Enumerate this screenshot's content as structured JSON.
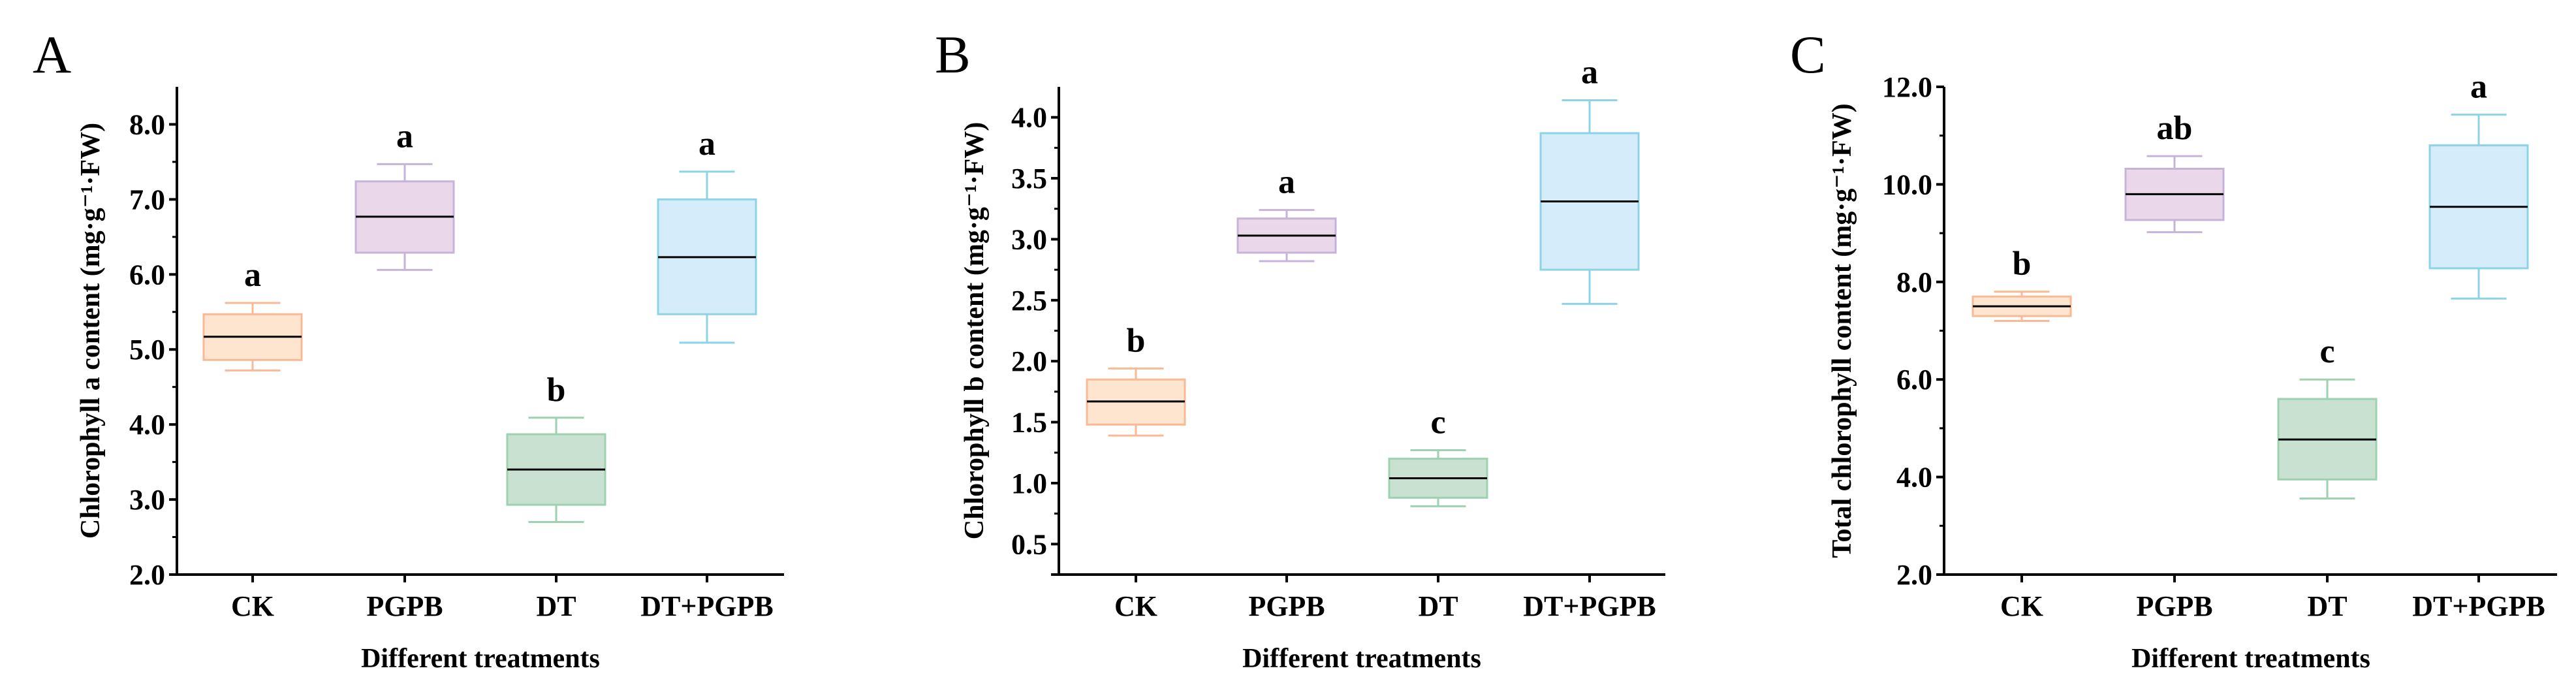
{
  "chart_data": [
    {
      "type": "box",
      "panel": "A",
      "xlabel": "Different treatments",
      "ylabel": "Chlorophyll a content (mg·g⁻¹·FW)",
      "categories": [
        "CK",
        "PGPB",
        "DT",
        "DT+PGPB"
      ],
      "ylim": [
        2.0,
        8.5
      ],
      "yticks": [
        2.0,
        3.0,
        4.0,
        5.0,
        6.0,
        7.0,
        8.0
      ],
      "ytick_labels": [
        "2.0",
        "3.0",
        "4.0",
        "5.0",
        "6.0",
        "7.0",
        "8.0"
      ],
      "boxes": [
        {
          "min": 4.72,
          "q1": 4.86,
          "median": 5.17,
          "q3": 5.47,
          "max": 5.62,
          "letter": "a"
        },
        {
          "min": 6.06,
          "q1": 6.29,
          "median": 6.77,
          "q3": 7.24,
          "max": 7.47,
          "letter": "a"
        },
        {
          "min": 2.7,
          "q1": 2.93,
          "median": 3.4,
          "q3": 3.87,
          "max": 4.09,
          "letter": "b"
        },
        {
          "min": 5.09,
          "q1": 5.47,
          "median": 6.23,
          "q3": 7.0,
          "max": 7.37,
          "letter": "a"
        }
      ]
    },
    {
      "type": "box",
      "panel": "B",
      "xlabel": "Different treatments",
      "ylabel": "Chlorophyll b content (mg·g⁻¹·FW)",
      "categories": [
        "CK",
        "PGPB",
        "DT",
        "DT+PGPB"
      ],
      "ylim": [
        0.25,
        4.25
      ],
      "yticks": [
        0.5,
        1.0,
        1.5,
        2.0,
        2.5,
        3.0,
        3.5,
        4.0
      ],
      "ytick_labels": [
        "0.5",
        "1.0",
        "1.5",
        "2.0",
        "2.5",
        "3.0",
        "3.5",
        "4.0"
      ],
      "boxes": [
        {
          "min": 1.39,
          "q1": 1.48,
          "median": 1.67,
          "q3": 1.85,
          "max": 1.94,
          "letter": "b"
        },
        {
          "min": 2.82,
          "q1": 2.89,
          "median": 3.03,
          "q3": 3.17,
          "max": 3.24,
          "letter": "a"
        },
        {
          "min": 0.81,
          "q1": 0.88,
          "median": 1.04,
          "q3": 1.2,
          "max": 1.27,
          "letter": "c"
        },
        {
          "min": 2.47,
          "q1": 2.75,
          "median": 3.31,
          "q3": 3.87,
          "max": 4.14,
          "letter": "a"
        }
      ]
    },
    {
      "type": "box",
      "panel": "C",
      "xlabel": "Different treatments",
      "ylabel": "Total chlorophyll content (mg·g⁻¹·FW)",
      "categories": [
        "CK",
        "PGPB",
        "DT",
        "DT+PGPB"
      ],
      "ylim": [
        2.0,
        12.0
      ],
      "yticks": [
        2.0,
        4.0,
        6.0,
        8.0,
        10.0,
        12.0
      ],
      "ytick_labels": [
        "2.0",
        "4.0",
        "6.0",
        "8.0",
        "10.0",
        "12.0"
      ],
      "boxes": [
        {
          "min": 7.2,
          "q1": 7.3,
          "median": 7.5,
          "q3": 7.7,
          "max": 7.8,
          "letter": "b"
        },
        {
          "min": 9.02,
          "q1": 9.27,
          "median": 9.8,
          "q3": 10.32,
          "max": 10.58,
          "letter": "ab"
        },
        {
          "min": 3.56,
          "q1": 3.95,
          "median": 4.77,
          "q3": 5.6,
          "max": 6.0,
          "letter": "c"
        },
        {
          "min": 7.66,
          "q1": 8.28,
          "median": 9.54,
          "q3": 10.8,
          "max": 11.43,
          "letter": "a"
        }
      ]
    }
  ],
  "colors": {
    "CK": {
      "fill": "#fde5cf",
      "stroke": "#f9b994"
    },
    "PGPB": {
      "fill": "#ead7ea",
      "stroke": "#c6b4d8"
    },
    "DT": {
      "fill": "#c8e1d0",
      "stroke": "#9dd2b1"
    },
    "DT+PGPB": {
      "fill": "#d5ecfb",
      "stroke": "#8cd3e8"
    }
  }
}
